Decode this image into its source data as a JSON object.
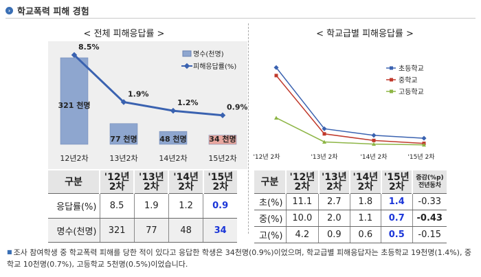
{
  "header": {
    "title": "학교폭력 피해 경험"
  },
  "left_panel": {
    "title": "< 전체 피해응답률 >"
  },
  "right_panel": {
    "title": "< 학교급별 피해응답률 >"
  },
  "chart_data": [
    {
      "type": "bar",
      "categories": [
        "12년2차",
        "13년2차",
        "14년2차",
        "15년2차"
      ],
      "series": [
        {
          "name": "명수(천명)",
          "values": [
            321,
            77,
            48,
            34
          ],
          "labels": [
            "321 천명",
            "77 천명",
            "48 천명",
            "34 천명"
          ],
          "color": "#8ea6cf"
        },
        {
          "name": "피해응답률(%)",
          "values": [
            8.5,
            1.9,
            1.2,
            0.9
          ],
          "labels": [
            "8.5%",
            "1.9%",
            "1.2%",
            "0.9%"
          ],
          "color": "#3a62b0"
        }
      ],
      "highlight_color": "#e8a79f",
      "legend": "top-right"
    },
    {
      "type": "line",
      "categories": [
        "'12년 2차",
        "'13년 2차",
        "'14년 2차",
        "'15년 2차"
      ],
      "series": [
        {
          "name": "초등학교",
          "values": [
            11.1,
            2.7,
            1.8,
            1.4
          ],
          "color": "#3a62b0"
        },
        {
          "name": "중학교",
          "values": [
            10.0,
            2.0,
            1.1,
            0.7
          ],
          "color": "#c0392b"
        },
        {
          "name": "고등학교",
          "values": [
            4.2,
            0.9,
            0.6,
            0.5
          ],
          "color": "#8db545"
        }
      ],
      "legend": "top-right"
    },
    {
      "type": "table",
      "columns": [
        "구분",
        "'12년 2차",
        "'13년 2차",
        "'14년 2차",
        "'15년 2차"
      ],
      "rows": [
        {
          "label": "응답률(%)",
          "values": [
            "8.5",
            "1.9",
            "1.2",
            "0.9"
          ]
        },
        {
          "label": "명수(천명)",
          "values": [
            "321",
            "77",
            "48",
            "34"
          ]
        }
      ]
    },
    {
      "type": "table",
      "columns": [
        "구분",
        "'12년 2차",
        "'13년 2차",
        "'14년 2차",
        "'15년 2차",
        "증감(%p) 전년동차"
      ],
      "rows": [
        {
          "label": "초(%)",
          "values": [
            "11.1",
            "2.7",
            "1.8",
            "1.4",
            "-0.33"
          ]
        },
        {
          "label": "중(%)",
          "values": [
            "10.0",
            "2.0",
            "1.1",
            "0.7",
            "-0.43"
          ]
        },
        {
          "label": "고(%)",
          "values": [
            "4.2",
            "0.9",
            "0.6",
            "0.5",
            "-0.15"
          ]
        }
      ]
    }
  ],
  "note": "조사 참여학생 중 학교폭력 피해를 당한 적이 있다고 응답한 학생은 34천명(0.9%)이었으며, 학교급별 피해응답자는 초등학교 19천명(1.4%), 중학교 10천명(0.7%), 고등학교 5천명(0.5%)이었습니다."
}
